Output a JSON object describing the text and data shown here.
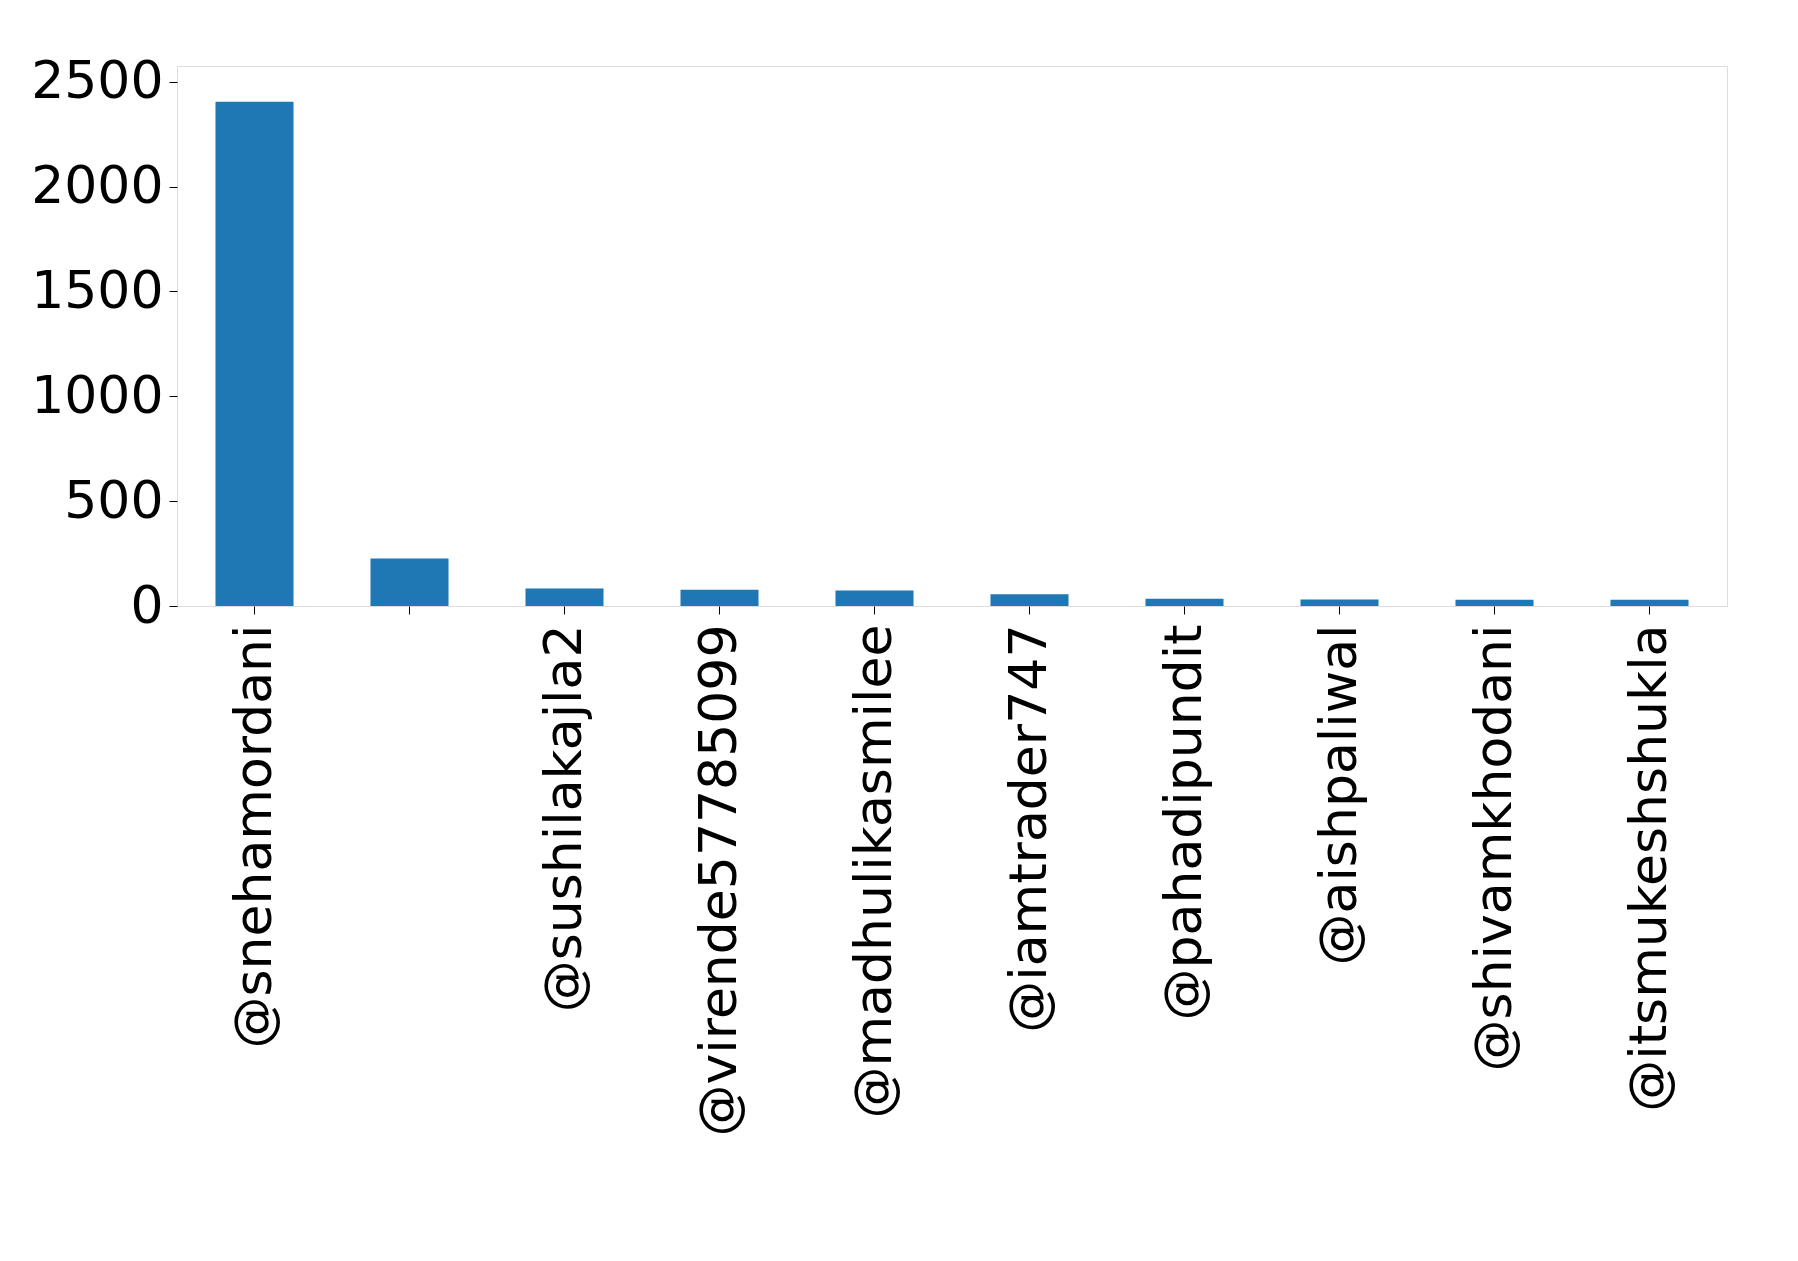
{
  "chart_data": {
    "type": "bar",
    "categories": [
      "@snehamordani",
      null,
      "@sushilakajla2",
      "@virende57785099",
      "@madhulikasmilee",
      "@iamtrader747",
      "@pahadipundit",
      "@aishpaliwal",
      "@shivamkhodani",
      "@itsmukeshshukla"
    ],
    "values": [
      2405,
      227,
      83,
      78,
      74,
      56,
      35,
      31,
      30,
      30
    ],
    "color": "#1f77b4",
    "ylim": [
      0,
      2575
    ],
    "yticks": [
      0,
      500,
      1000,
      1500,
      2000,
      2500
    ],
    "grid": false
  }
}
